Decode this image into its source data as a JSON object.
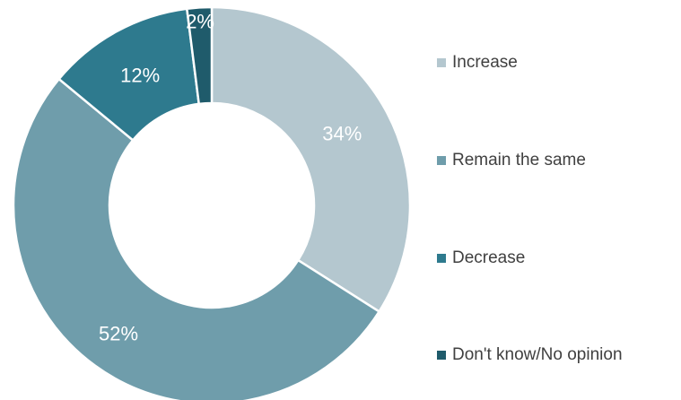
{
  "chart_data": {
    "type": "pie",
    "donut": true,
    "categories": [
      "Increase",
      "Remain the same",
      "Decrease",
      "Don't know/No opinion"
    ],
    "values": [
      34,
      52,
      12,
      2
    ],
    "labels": [
      "34%",
      "52%",
      "12%",
      "2%"
    ],
    "colors": [
      "#b4c7cf",
      "#6f9dab",
      "#2e7a8e",
      "#1f5b6b"
    ],
    "legend_position": "right"
  }
}
